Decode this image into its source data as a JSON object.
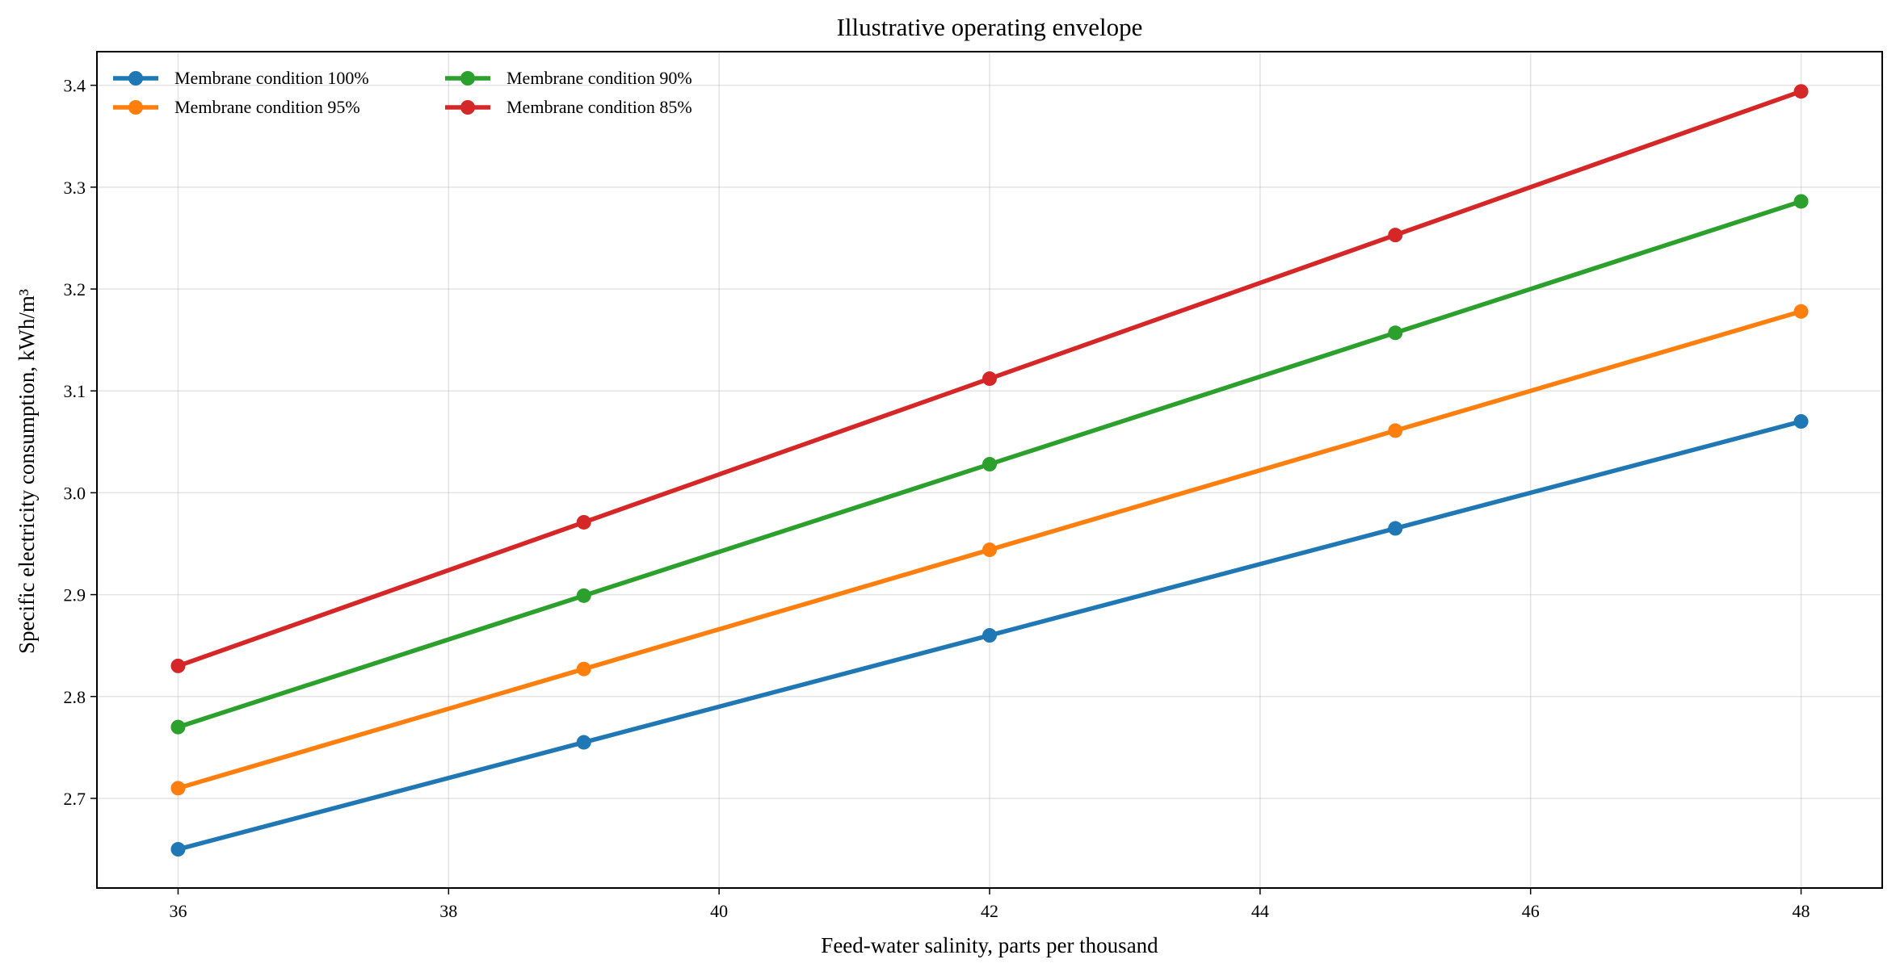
{
  "chart_data": {
    "type": "line",
    "title": "Illustrative operating envelope",
    "xlabel": "Feed-water salinity, parts per thousand",
    "ylabel": "Specific electricity consumption, kWh/m³",
    "x": [
      36,
      39,
      42,
      45,
      48
    ],
    "xlim": [
      35.4,
      48.6
    ],
    "ylim": [
      2.612,
      3.433
    ],
    "xticks": [
      36,
      38,
      40,
      42,
      44,
      46,
      48
    ],
    "yticks": [
      "2.7",
      "2.8",
      "2.9",
      "3.0",
      "3.1",
      "3.2",
      "3.3",
      "3.4"
    ],
    "grid": true,
    "legend_position": "top-left",
    "series": [
      {
        "name": "Membrane condition 100%",
        "color": "#1f77b4",
        "values": [
          2.65,
          2.755,
          2.86,
          2.965,
          3.07
        ]
      },
      {
        "name": "Membrane condition 95%",
        "color": "#ff7f0e",
        "values": [
          2.71,
          2.827,
          2.944,
          3.061,
          3.178
        ]
      },
      {
        "name": "Membrane condition 90%",
        "color": "#2ca02c",
        "values": [
          2.77,
          2.899,
          3.028,
          3.157,
          3.286
        ]
      },
      {
        "name": "Membrane condition 85%",
        "color": "#d62728",
        "values": [
          2.83,
          2.971,
          3.112,
          3.253,
          3.394
        ]
      }
    ]
  }
}
